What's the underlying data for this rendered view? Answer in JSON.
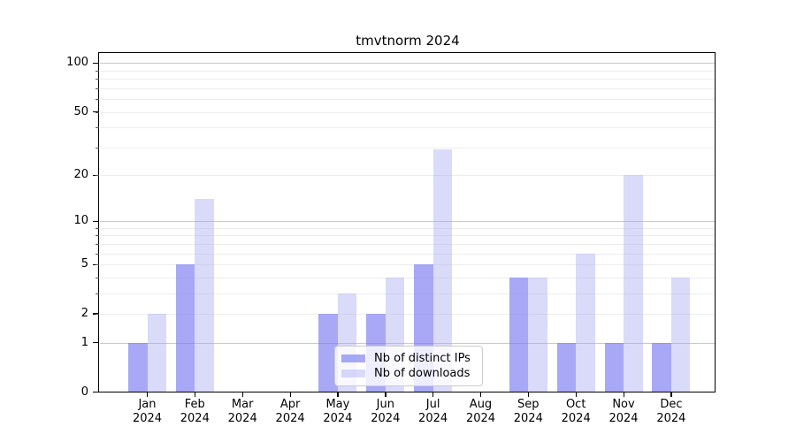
{
  "figure": {
    "title": "tmvtnorm 2024"
  },
  "chart_data": {
    "type": "bar",
    "title": "tmvtnorm 2024",
    "xlabel": "",
    "ylabel": "",
    "categories": [
      "Jan 2024",
      "Feb 2024",
      "Mar 2024",
      "Apr 2024",
      "May 2024",
      "Jun 2024",
      "Jul 2024",
      "Aug 2024",
      "Sep 2024",
      "Oct 2024",
      "Nov 2024",
      "Dec 2024"
    ],
    "series": [
      {
        "name": "Nb of distinct IPs",
        "color_hex": "#a8a8f6",
        "color_rgba": "rgba(119,119,242,0.64)",
        "values": [
          1,
          5,
          0,
          0,
          2,
          2,
          5,
          0,
          4,
          1,
          1,
          1
        ]
      },
      {
        "name": "Nb of downloads",
        "color_hex": "#dcdcf8",
        "color_rgba": "rgba(168,168,240,0.42)",
        "values": [
          2,
          14,
          0,
          0,
          3,
          4,
          29,
          0,
          4,
          6,
          20,
          4
        ]
      }
    ],
    "yscale": "log1p",
    "ylim": [
      0,
      116
    ],
    "y_ticks": [
      0,
      1,
      2,
      5,
      10,
      20,
      50,
      100
    ],
    "y_major_gridlines": [
      1,
      10,
      100
    ],
    "y_minor_gridlines": [
      2,
      3,
      4,
      5,
      6,
      7,
      8,
      9,
      20,
      30,
      40,
      50,
      60,
      70,
      80,
      90
    ],
    "grid": true,
    "legend_position": "lower center"
  },
  "colors": {
    "major_grid": "#c9c9c9",
    "minor_grid": "#ededed",
    "spine": "#000000",
    "background": "#ffffff",
    "legend_border": "#cccccc"
  }
}
